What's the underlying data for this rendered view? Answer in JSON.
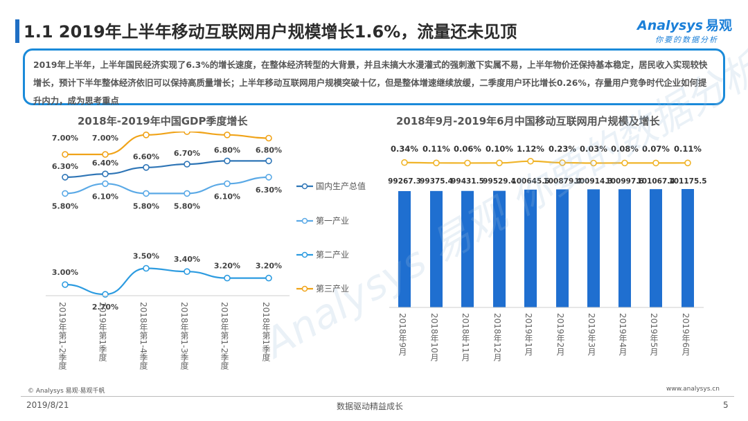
{
  "header": {
    "title": "1.1 2019年上半年移动互联网用户规模增长1.6%，流量还未见顶",
    "logo_text": "Analysys",
    "logo_cn": "易观",
    "logo_tagline": "你要的数据分析"
  },
  "summary": "2019年上半年，上半年国民经济实现了6.3%的增长速度，在整体经济转型的大背景，并且未搞大水漫灌式的强刺激下实属不易，上半年物价还保持基本稳定，居民收入实现较快增长，预计下半年整体经济依旧可以保持高质量增长；上半年移动互联网用户规模突破十亿，但是整体增速继续放缓，二季度用户环比增长0.26%，存量用户竞争时代企业如何提升内力，成为思考重点",
  "watermark": "Analysys 易观 你要的数据分析",
  "footer": {
    "copyright": "© Analysys 易观·易观千帆",
    "url": "www.analysys.cn",
    "date": "2019/8/21",
    "slogan": "数据驱动精益成长",
    "page": "5"
  },
  "colors": {
    "accent": "#1a8ad9",
    "gdp": "#2e75b6",
    "primary": "#5aa9e6",
    "secondary": "#2c9be0",
    "tertiary": "#f0a318",
    "bar": "#1f6fd0",
    "growth": "#f0b429"
  },
  "chart_data": [
    {
      "type": "line",
      "title": "2018年-2019年中国GDP季度增长",
      "categories": [
        "2019年第1-2季度",
        "2019年第1季度",
        "2018年第1-4季度",
        "2018年第1-3季度",
        "2018年第1-2季度",
        "2018年第1季度"
      ],
      "series": [
        {
          "name": "国内生产总值",
          "values": [
            6.3,
            6.4,
            6.6,
            6.7,
            6.8,
            6.8
          ],
          "labels": [
            "6.30%",
            "6.40%",
            "6.60%",
            "6.70%",
            "6.80%",
            "6.80%"
          ]
        },
        {
          "name": "第一产业",
          "values": [
            5.8,
            6.1,
            5.8,
            5.8,
            6.1,
            6.3
          ],
          "labels": [
            "5.80%",
            "6.10%",
            "5.80%",
            "5.80%",
            "6.10%",
            "6.30%"
          ]
        },
        {
          "name": "第二产业",
          "values": [
            3.0,
            2.7,
            3.5,
            3.4,
            3.2,
            3.2
          ],
          "labels": [
            "3.00%",
            "2.70%",
            "3.50%",
            "3.40%",
            "3.20%",
            "3.20%"
          ]
        },
        {
          "name": "第三产业",
          "values": [
            7.0,
            7.0,
            7.6,
            7.7,
            7.6,
            7.5
          ],
          "labels": [
            "7.00%",
            "7.00%",
            "7.60%",
            "7.70%",
            "7.60%",
            "7.50%"
          ]
        }
      ],
      "legend": "right"
    },
    {
      "type": "bar",
      "title": "2018年9月-2019年6月中国移动互联网用户规模及增长",
      "categories": [
        "2018年9月",
        "2018年10月",
        "2018年11月",
        "2018年12月",
        "2019年1月",
        "2019年2月",
        "2019年3月",
        "2019年4月",
        "2019年5月",
        "2019年6月"
      ],
      "series": [
        {
          "values": [
            99267.3,
            99375.4,
            99431.5,
            99529.4,
            100645.5,
            100879.4,
            100914.3,
            100997.6,
            101067.4,
            101175.5
          ],
          "labels": [
            "99267.3",
            "99375.4",
            "99431.5",
            "99529.4",
            "100645.5",
            "100879.4",
            "100914.3",
            "100997.6",
            "101067.4",
            "101175.5"
          ]
        },
        {
          "values": [
            0.34,
            0.11,
            0.06,
            0.1,
            1.12,
            0.23,
            0.03,
            0.08,
            0.07,
            0.11
          ],
          "labels": [
            "0.34%",
            "0.11%",
            "0.06%",
            "0.10%",
            "1.12%",
            "0.23%",
            "0.03%",
            "0.08%",
            "0.07%",
            "0.11%"
          ]
        }
      ]
    }
  ]
}
